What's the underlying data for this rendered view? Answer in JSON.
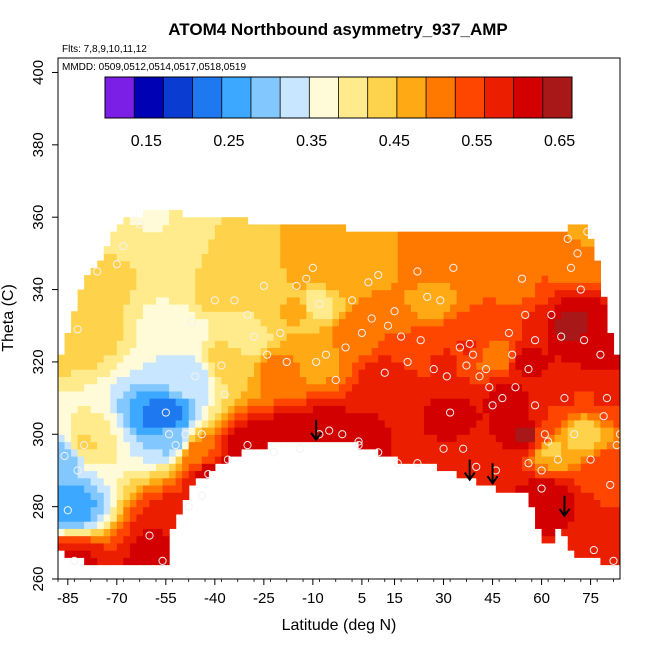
{
  "chart_data": {
    "type": "heatmap",
    "title": "ATOM4 Northbound asymmetry_937_AMP",
    "subtitle_flights": "Flts: 7,8,9,10,11,12",
    "subtitle_dates": "MMDD: 0509,0512,0514,0517,0518,0519",
    "xlabel": "Latitude (deg N)",
    "ylabel": "Theta (C)",
    "xlim": [
      -88,
      84
    ],
    "ylim": [
      260,
      404
    ],
    "xticks": [
      -85,
      -70,
      -55,
      -40,
      -25,
      -10,
      5,
      15,
      30,
      45,
      60,
      75
    ],
    "yticks": [
      260,
      280,
      300,
      320,
      340,
      360,
      380,
      400
    ],
    "colorbar": {
      "min": 0.1,
      "max": 0.665,
      "ticks": [
        0.15,
        0.25,
        0.35,
        0.45,
        0.55,
        0.65
      ],
      "tick_labels": [
        "0.15",
        "0.25",
        "0.35",
        "0.45",
        "0.55",
        "0.65"
      ],
      "colors": [
        "#7b1fe6",
        "#0000b4",
        "#0a3cd2",
        "#1e78f0",
        "#3ca8ff",
        "#82c8ff",
        "#c8e6ff",
        "#fffbd8",
        "#ffeb8c",
        "#ffd24b",
        "#ffaa14",
        "#ff7800",
        "#ff4600",
        "#ec1e00",
        "#d20000",
        "#a81818"
      ]
    },
    "field_points": [
      {
        "lat": -86,
        "theta": 294,
        "value": 0.28
      },
      {
        "lat": -85,
        "theta": 280,
        "value": 0.26
      },
      {
        "lat": -84,
        "theta": 265,
        "value": 0.6
      },
      {
        "lat": -80,
        "theta": 297,
        "value": 0.42
      },
      {
        "lat": -82,
        "theta": 330,
        "value": 0.45
      },
      {
        "lat": -75,
        "theta": 345,
        "value": 0.43
      },
      {
        "lat": -68,
        "theta": 355,
        "value": 0.4
      },
      {
        "lat": -62,
        "theta": 360,
        "value": 0.38
      },
      {
        "lat": -55,
        "theta": 305,
        "value": 0.22
      },
      {
        "lat": -53,
        "theta": 298,
        "value": 0.3
      },
      {
        "lat": -50,
        "theta": 330,
        "value": 0.35
      },
      {
        "lat": -48,
        "theta": 316,
        "value": 0.33
      },
      {
        "lat": -45,
        "theta": 295,
        "value": 0.52
      },
      {
        "lat": -52,
        "theta": 276,
        "value": 0.58
      },
      {
        "lat": -55,
        "theta": 268,
        "value": 0.62
      },
      {
        "lat": -42,
        "theta": 337,
        "value": 0.42
      },
      {
        "lat": -38,
        "theta": 340,
        "value": 0.42
      },
      {
        "lat": -35,
        "theta": 320,
        "value": 0.44
      },
      {
        "lat": -30,
        "theta": 326,
        "value": 0.4
      },
      {
        "lat": -24,
        "theta": 341,
        "value": 0.42
      },
      {
        "lat": -20,
        "theta": 318,
        "value": 0.5
      },
      {
        "lat": -15,
        "theta": 335,
        "value": 0.46
      },
      {
        "lat": -12,
        "theta": 345,
        "value": 0.47
      },
      {
        "lat": -9,
        "theta": 336,
        "value": 0.4
      },
      {
        "lat": -8,
        "theta": 322,
        "value": 0.46
      },
      {
        "lat": -7,
        "theta": 300,
        "value": 0.62
      },
      {
        "lat": -30,
        "theta": 296,
        "value": 0.62
      },
      {
        "lat": -40,
        "theta": 289,
        "value": 0.62
      },
      {
        "lat": -18,
        "theta": 298,
        "value": 0.62
      },
      {
        "lat": 0,
        "theta": 344,
        "value": 0.48
      },
      {
        "lat": 2,
        "theta": 325,
        "value": 0.52
      },
      {
        "lat": 4,
        "theta": 300,
        "value": 0.6
      },
      {
        "lat": 8,
        "theta": 331,
        "value": 0.52
      },
      {
        "lat": 10,
        "theta": 346,
        "value": 0.48
      },
      {
        "lat": 12,
        "theta": 316,
        "value": 0.58
      },
      {
        "lat": 15,
        "theta": 335,
        "value": 0.49
      },
      {
        "lat": 20,
        "theta": 323,
        "value": 0.55
      },
      {
        "lat": 22,
        "theta": 345,
        "value": 0.5
      },
      {
        "lat": 26,
        "theta": 338,
        "value": 0.47
      },
      {
        "lat": 30,
        "theta": 320,
        "value": 0.56
      },
      {
        "lat": 32,
        "theta": 306,
        "value": 0.6
      },
      {
        "lat": 34,
        "theta": 345,
        "value": 0.5
      },
      {
        "lat": 38,
        "theta": 325,
        "value": 0.56
      },
      {
        "lat": 42,
        "theta": 328,
        "value": 0.54
      },
      {
        "lat": 46,
        "theta": 322,
        "value": 0.5
      },
      {
        "lat": 46,
        "theta": 290,
        "value": 0.58
      },
      {
        "lat": 50,
        "theta": 310,
        "value": 0.6
      },
      {
        "lat": 52,
        "theta": 340,
        "value": 0.52
      },
      {
        "lat": 56,
        "theta": 320,
        "value": 0.6
      },
      {
        "lat": 58,
        "theta": 330,
        "value": 0.56
      },
      {
        "lat": 60,
        "theta": 300,
        "value": 0.55
      },
      {
        "lat": 61,
        "theta": 282,
        "value": 0.62
      },
      {
        "lat": 63,
        "theta": 296,
        "value": 0.45
      },
      {
        "lat": 66,
        "theta": 310,
        "value": 0.56
      },
      {
        "lat": 68,
        "theta": 330,
        "value": 0.64
      },
      {
        "lat": 70,
        "theta": 350,
        "value": 0.5
      },
      {
        "lat": 72,
        "theta": 300,
        "value": 0.44
      },
      {
        "lat": 74,
        "theta": 355,
        "value": 0.48
      },
      {
        "lat": 78,
        "theta": 325,
        "value": 0.62
      },
      {
        "lat": 80,
        "theta": 310,
        "value": 0.56
      },
      {
        "lat": 80,
        "theta": 290,
        "value": 0.55
      },
      {
        "lat": 82,
        "theta": 272,
        "value": 0.56
      },
      {
        "lat": 76,
        "theta": 268,
        "value": 0.58
      },
      {
        "lat": 56,
        "theta": 300,
        "value": 0.64
      }
    ],
    "observation_points": [
      [
        -86,
        294
      ],
      [
        -85,
        279
      ],
      [
        -83,
        265
      ],
      [
        -82,
        290
      ],
      [
        -80,
        297
      ],
      [
        -82,
        329
      ],
      [
        -76,
        345
      ],
      [
        -70,
        347
      ],
      [
        -68,
        352
      ],
      [
        -63,
        358
      ],
      [
        -55,
        306
      ],
      [
        -54,
        300
      ],
      [
        -52,
        297
      ],
      [
        -49,
        300
      ],
      [
        -47,
        331
      ],
      [
        -46,
        316
      ],
      [
        -44,
        300
      ],
      [
        -42,
        289
      ],
      [
        -40,
        337
      ],
      [
        -38,
        319
      ],
      [
        -37,
        311
      ],
      [
        -34,
        337
      ],
      [
        -30,
        333
      ],
      [
        -28,
        327
      ],
      [
        -25,
        341
      ],
      [
        -24,
        322
      ],
      [
        -20,
        328
      ],
      [
        -18,
        320
      ],
      [
        -15,
        341
      ],
      [
        -12,
        343
      ],
      [
        -10,
        346
      ],
      [
        -9,
        320
      ],
      [
        -8,
        336
      ],
      [
        -6,
        322
      ],
      [
        -5,
        301
      ],
      [
        -3,
        315
      ],
      [
        -1,
        300
      ],
      [
        0,
        324
      ],
      [
        2,
        337
      ],
      [
        4,
        298
      ],
      [
        5,
        328
      ],
      [
        7,
        342
      ],
      [
        8,
        332
      ],
      [
        10,
        344
      ],
      [
        12,
        317
      ],
      [
        13,
        330
      ],
      [
        15,
        334
      ],
      [
        17,
        327
      ],
      [
        19,
        320
      ],
      [
        22,
        345
      ],
      [
        23,
        326
      ],
      [
        25,
        338
      ],
      [
        27,
        318
      ],
      [
        29,
        337
      ],
      [
        31,
        316
      ],
      [
        32,
        306
      ],
      [
        33,
        346
      ],
      [
        35,
        324
      ],
      [
        37,
        319
      ],
      [
        38,
        325
      ],
      [
        39,
        322
      ],
      [
        41,
        316
      ],
      [
        43,
        318
      ],
      [
        44,
        313
      ],
      [
        45,
        308
      ],
      [
        46,
        290
      ],
      [
        48,
        310
      ],
      [
        50,
        328
      ],
      [
        51,
        322
      ],
      [
        52,
        313
      ],
      [
        54,
        343
      ],
      [
        55,
        333
      ],
      [
        56,
        318
      ],
      [
        58,
        326
      ],
      [
        58,
        308
      ],
      [
        60,
        290
      ],
      [
        61,
        300
      ],
      [
        62,
        298
      ],
      [
        63,
        333
      ],
      [
        65,
        293
      ],
      [
        66,
        327
      ],
      [
        67,
        310
      ],
      [
        68,
        354
      ],
      [
        69,
        346
      ],
      [
        70,
        300
      ],
      [
        71,
        350
      ],
      [
        72,
        340
      ],
      [
        73,
        326
      ],
      [
        74,
        356
      ],
      [
        75,
        293
      ],
      [
        76,
        268
      ],
      [
        78,
        322
      ],
      [
        79,
        305
      ],
      [
        80,
        310
      ],
      [
        81,
        286
      ],
      [
        82,
        265
      ],
      [
        83,
        297
      ],
      [
        84,
        300
      ],
      [
        -60,
        272
      ],
      [
        -56,
        265
      ],
      [
        -48,
        280
      ],
      [
        -44,
        283
      ],
      [
        -36,
        293
      ],
      [
        -30,
        297
      ],
      [
        -22,
        295
      ],
      [
        -14,
        296
      ],
      [
        -8,
        300
      ],
      [
        4,
        297
      ],
      [
        10,
        295
      ],
      [
        16,
        292
      ],
      [
        22,
        292
      ],
      [
        30,
        296
      ],
      [
        36,
        296
      ],
      [
        40,
        291
      ],
      [
        56,
        292
      ],
      [
        60,
        285
      ]
    ],
    "arrow_latitudes": [
      -9,
      38,
      45,
      67
    ],
    "arrows_theta_top": [
      304,
      293,
      292,
      283
    ]
  }
}
